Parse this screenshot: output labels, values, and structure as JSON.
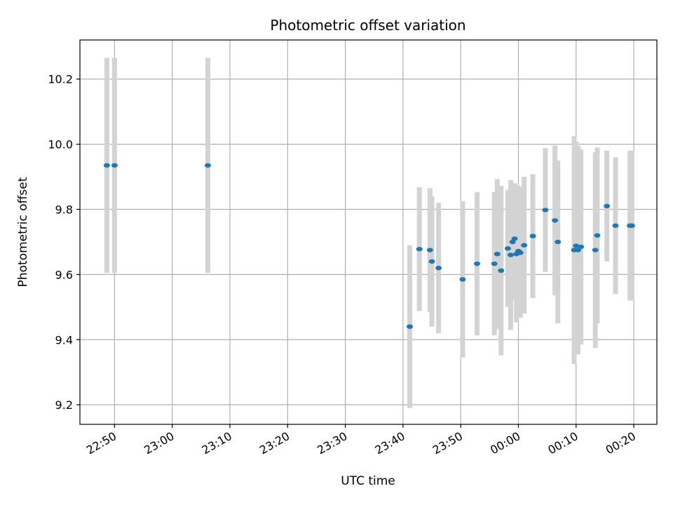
{
  "chart_data": {
    "type": "scatter",
    "title": "Photometric offset variation",
    "xlabel": "UTC time",
    "ylabel": "Photometric offset",
    "x_is_time": true,
    "xlim": [
      "22:44",
      "00:24"
    ],
    "ylim": [
      9.14,
      10.32
    ],
    "grid": true,
    "x_ticks": [
      "22:50",
      "23:00",
      "23:10",
      "23:20",
      "23:30",
      "23:40",
      "23:50",
      "00:00",
      "00:10",
      "00:20"
    ],
    "y_ticks": [
      "9.2",
      "9.4",
      "9.6",
      "9.8",
      "10.0",
      "10.2"
    ],
    "colors": {
      "points": "#1f77b4",
      "errorbars": "#d3d3d3",
      "grid": "#b0b0b0"
    },
    "points": [
      {
        "x": "22:48:40",
        "y": 9.935,
        "err": 0.33
      },
      {
        "x": "22:50:00",
        "y": 9.935,
        "err": 0.33
      },
      {
        "x": "23:06:10",
        "y": 9.935,
        "err": 0.33
      },
      {
        "x": "23:41:10",
        "y": 9.44,
        "err": 0.25
      },
      {
        "x": "23:42:50",
        "y": 9.678,
        "err": 0.19
      },
      {
        "x": "23:44:40",
        "y": 9.675,
        "err": 0.19
      },
      {
        "x": "23:45:00",
        "y": 9.64,
        "err": 0.2
      },
      {
        "x": "23:46:10",
        "y": 9.62,
        "err": 0.2
      },
      {
        "x": "23:50:20",
        "y": 9.585,
        "err": 0.24
      },
      {
        "x": "23:52:50",
        "y": 9.633,
        "err": 0.22
      },
      {
        "x": "23:55:50",
        "y": 9.633,
        "err": 0.22
      },
      {
        "x": "23:56:20",
        "y": 9.663,
        "err": 0.23
      },
      {
        "x": "23:57:00",
        "y": 9.612,
        "err": 0.26
      },
      {
        "x": "23:58:10",
        "y": 9.68,
        "err": 0.18
      },
      {
        "x": "23:58:40",
        "y": 9.66,
        "err": 0.23
      },
      {
        "x": "23:59:00",
        "y": 9.7,
        "err": 0.18
      },
      {
        "x": "23:59:20",
        "y": 9.71,
        "err": 0.17
      },
      {
        "x": "23:59:40",
        "y": 9.663,
        "err": 0.21
      },
      {
        "x": "00:00:00",
        "y": 9.672,
        "err": 0.2
      },
      {
        "x": "00:00:20",
        "y": 9.667,
        "err": 0.2
      },
      {
        "x": "00:01:00",
        "y": 9.69,
        "err": 0.21
      },
      {
        "x": "00:02:30",
        "y": 9.718,
        "err": 0.19
      },
      {
        "x": "00:04:40",
        "y": 9.798,
        "err": 0.19
      },
      {
        "x": "00:06:20",
        "y": 9.766,
        "err": 0.23
      },
      {
        "x": "00:06:50",
        "y": 9.7,
        "err": 0.25
      },
      {
        "x": "00:09:40",
        "y": 9.675,
        "err": 0.35
      },
      {
        "x": "00:10:00",
        "y": 9.688,
        "err": 0.32
      },
      {
        "x": "00:10:20",
        "y": 9.675,
        "err": 0.32
      },
      {
        "x": "00:10:50",
        "y": 9.685,
        "err": 0.3
      },
      {
        "x": "00:13:20",
        "y": 9.675,
        "err": 0.3
      },
      {
        "x": "00:13:40",
        "y": 9.72,
        "err": 0.27
      },
      {
        "x": "00:15:20",
        "y": 9.81,
        "err": 0.17
      },
      {
        "x": "00:16:50",
        "y": 9.75,
        "err": 0.21
      },
      {
        "x": "00:19:20",
        "y": 9.75,
        "err": 0.23
      },
      {
        "x": "00:19:40",
        "y": 9.75,
        "err": 0.23
      }
    ]
  }
}
